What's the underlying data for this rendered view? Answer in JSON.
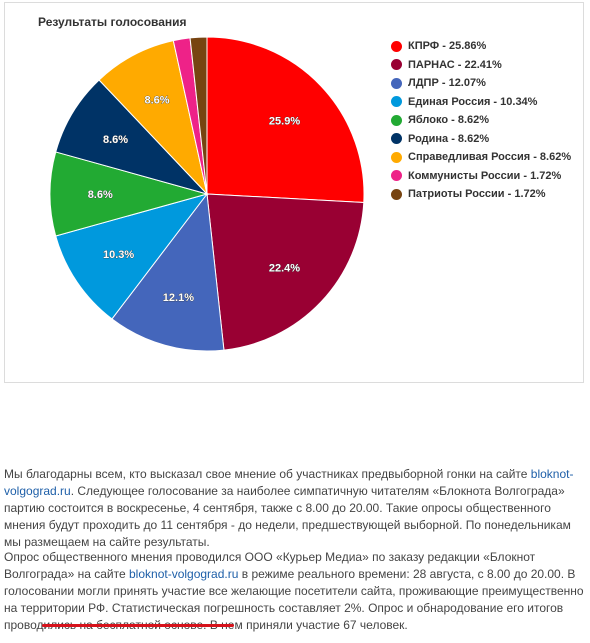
{
  "chart_data": {
    "type": "pie",
    "title": "Результаты голосования",
    "categories": [
      "КПРФ",
      "ПАРНАС",
      "ЛДПР",
      "Единая Россия",
      "Яблоко",
      "Родина",
      "Справедливая Россия",
      "Коммунисты России",
      "Патриоты России"
    ],
    "values": [
      25.86,
      22.41,
      12.07,
      10.34,
      8.62,
      8.62,
      8.62,
      1.72,
      1.72
    ],
    "legend_labels": [
      "КПРФ - 25.86%",
      "ПАРНАС - 22.41%",
      "ЛДПР - 12.07%",
      "Единая Россия - 10.34%",
      "Яблоко - 8.62%",
      "Родина - 8.62%",
      "Справедливая Россия - 8.62%",
      "Коммунисты России - 1.72%",
      "Патриоты России - 1.72%"
    ],
    "slice_labels": [
      "25.9%",
      "22.4%",
      "12.1%",
      "10.3%",
      "8.6%",
      "8.6%",
      "8.6%",
      "",
      ""
    ],
    "colors": [
      "#ff0000",
      "#990033",
      "#4466bb",
      "#0099dd",
      "#22aa33",
      "#003366",
      "#ffaa00",
      "#ee2288",
      "#774411"
    ],
    "legend_position": "right"
  },
  "article": {
    "p1_before": "Мы благодарны всем, кто высказал свое мнение об участниках предвыборной гонки на сайте ",
    "p1_link": "bloknot-volgograd.ru",
    "p1_after": ". Следующее голосование за наиболее симпатичную читателям «Блокнота Волгограда» партию состоится в воскресенье, 4 сентября, также с 8.00 до 20.00. Такие опросы общественного мнения будут проходить до 11 сентября - до недели, предшествующей выборной. По понедельникам мы размещаем на сайте результаты.",
    "p2_before": "Опрос общественного мнения проводился ООО «Курьер Медиа» по заказу редакции «Блокнот Волгограда» на сайте ",
    "p2_link": "bloknot-volgograd.ru",
    "p2_after": " в режиме реального времени: 28 августа, с 8.00 до 20.00. В голосовании могли принять участие все желающие посетители сайта, проживающие преимущественно на территории РФ. Статистическая погрешность составляет 2%. Опрос и обнародование его итогов проводились на бесплатной основе. ",
    "p2_highlight": "В нем приняли участие 67 человек."
  }
}
